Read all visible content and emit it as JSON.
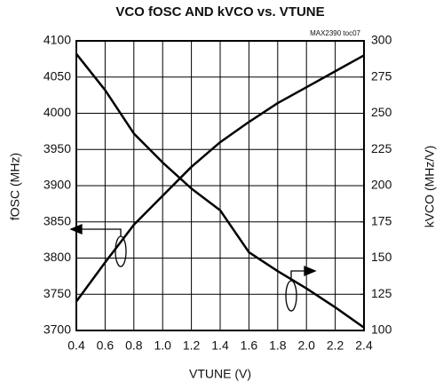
{
  "chart_data": {
    "type": "line",
    "title": "VCO fOSC AND kVCO vs. VTUNE",
    "annotation": "MAX2390 toc07",
    "x_label": "VTUNE (V)",
    "y_label": "fOSC (MHz)",
    "y2_label": "kVCO (MHz/V)",
    "x": [
      0.4,
      0.6,
      0.8,
      1.0,
      1.2,
      1.4,
      1.6,
      1.8,
      2.0,
      2.2,
      2.4
    ],
    "series": [
      {
        "name": "fOSC",
        "color": "#000000",
        "values": [
          3740,
          3794,
          3846,
          3886,
          3926,
          3960,
          3988,
          4014,
          4036,
          4058,
          4080
        ]
      },
      {
        "name": "kVCO",
        "color": "#000000",
        "axis": "y2",
        "values": [
          291,
          266,
          236,
          216,
          198,
          183,
          154,
          141,
          129,
          116,
          102
        ]
      }
    ],
    "xlim": [
      0.4,
      2.4
    ],
    "xticks": [
      0.4,
      0.6,
      0.8,
      {
        "value": 1,
        "label": "1.0"
      },
      1.2,
      1.4,
      1.6,
      1.8,
      {
        "value": 2,
        "label": "2.0"
      },
      2.2,
      2.4
    ],
    "ylim": [
      3700,
      4100
    ],
    "yticks": [
      3700,
      3750,
      3800,
      3850,
      3900,
      3950,
      4000,
      4050,
      4100
    ],
    "y2lim": [
      100,
      300
    ],
    "y2ticks": [
      100,
      125,
      150,
      175,
      200,
      225,
      250,
      275,
      300
    ],
    "grid": true
  }
}
